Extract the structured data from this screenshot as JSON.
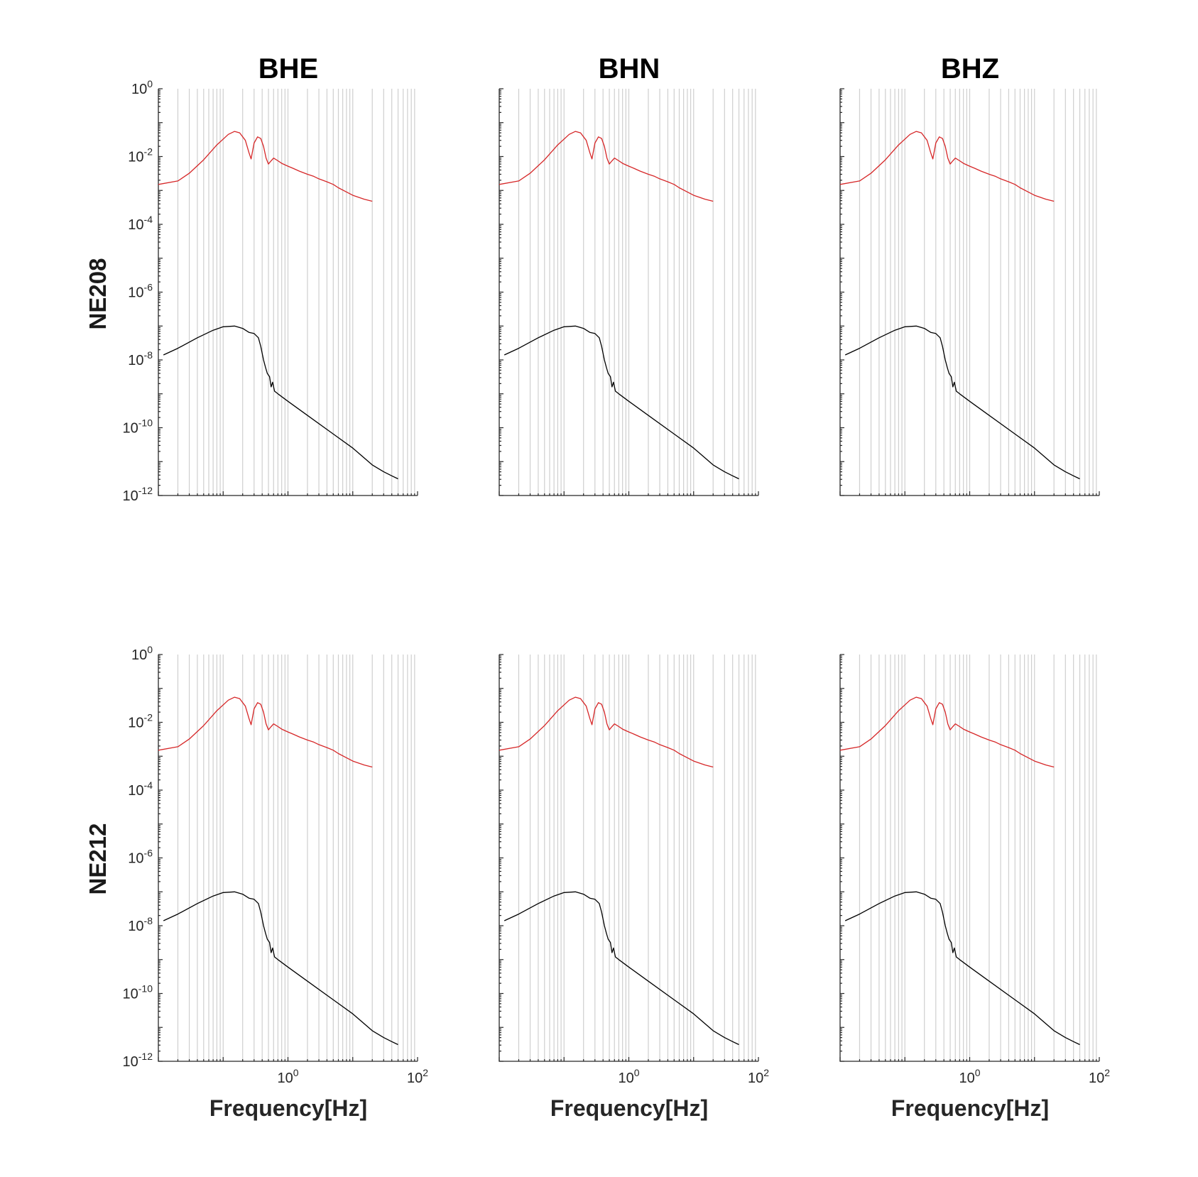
{
  "figure": {
    "columns": [
      "BHE",
      "BHN",
      "BHZ"
    ],
    "rows": [
      "NE208",
      "NE212"
    ],
    "xlabel": "Frequency[Hz]"
  },
  "chart_data": {
    "type": "line",
    "x_scale": "log",
    "y_scale": "log",
    "xlim": [
      0.01,
      100
    ],
    "ylim": [
      1e-12,
      1
    ],
    "grid": "vertical lines at minor and major x ticks",
    "x_ticks": [
      {
        "base": "10",
        "exp": "0",
        "value": 1
      },
      {
        "base": "10",
        "exp": "2",
        "value": 100
      }
    ],
    "y_ticks": [
      {
        "base": "10",
        "exp": "0",
        "value": 1
      },
      {
        "base": "10",
        "exp": "-2",
        "value": 0.01
      },
      {
        "base": "10",
        "exp": "-4",
        "value": 0.0001
      },
      {
        "base": "10",
        "exp": "-6",
        "value": 1e-06
      },
      {
        "base": "10",
        "exp": "-8",
        "value": 1e-08
      },
      {
        "base": "10",
        "exp": "-10",
        "value": 1e-10
      },
      {
        "base": "10",
        "exp": "-12",
        "value": 1e-12
      }
    ],
    "series": [
      {
        "color": "#d62728",
        "points": [
          [
            0.01,
            0.0015
          ],
          [
            0.02,
            0.0019
          ],
          [
            0.03,
            0.0032
          ],
          [
            0.05,
            0.008
          ],
          [
            0.08,
            0.022
          ],
          [
            0.12,
            0.045
          ],
          [
            0.15,
            0.055
          ],
          [
            0.18,
            0.05
          ],
          [
            0.22,
            0.03
          ],
          [
            0.25,
            0.013
          ],
          [
            0.27,
            0.0085
          ],
          [
            0.3,
            0.025
          ],
          [
            0.34,
            0.038
          ],
          [
            0.38,
            0.034
          ],
          [
            0.42,
            0.02
          ],
          [
            0.46,
            0.009
          ],
          [
            0.5,
            0.006
          ],
          [
            0.55,
            0.0075
          ],
          [
            0.6,
            0.009
          ],
          [
            0.7,
            0.0075
          ],
          [
            0.8,
            0.0063
          ],
          [
            1.0,
            0.0052
          ],
          [
            1.2,
            0.0045
          ],
          [
            1.5,
            0.0037
          ],
          [
            2.0,
            0.003
          ],
          [
            2.5,
            0.0026
          ],
          [
            3.0,
            0.0022
          ],
          [
            4.0,
            0.0018
          ],
          [
            5.0,
            0.0015
          ],
          [
            6.0,
            0.0012
          ],
          [
            8.0,
            0.0009
          ],
          [
            10.0,
            0.00072
          ],
          [
            15.0,
            0.00055
          ],
          [
            20.0,
            0.00048
          ]
        ]
      },
      {
        "color": "#000000",
        "points": [
          [
            0.012,
            1.4e-08
          ],
          [
            0.02,
            2.2e-08
          ],
          [
            0.04,
            4.5e-08
          ],
          [
            0.07,
            7.5e-08
          ],
          [
            0.1,
            9.5e-08
          ],
          [
            0.15,
            1e-07
          ],
          [
            0.2,
            8.5e-08
          ],
          [
            0.25,
            6.5e-08
          ],
          [
            0.3,
            6e-08
          ],
          [
            0.35,
            4.5e-08
          ],
          [
            0.38,
            2.5e-08
          ],
          [
            0.42,
            1e-08
          ],
          [
            0.45,
            6e-09
          ],
          [
            0.48,
            4e-09
          ],
          [
            0.52,
            3.2e-09
          ],
          [
            0.55,
            1.6e-09
          ],
          [
            0.58,
            2.2e-09
          ],
          [
            0.62,
            1.2e-09
          ],
          [
            0.7,
            1e-09
          ],
          [
            1.0,
            6e-10
          ],
          [
            2.0,
            2.3e-10
          ],
          [
            5.0,
            6.5e-11
          ],
          [
            10.0,
            2.5e-11
          ],
          [
            20.0,
            8e-12
          ],
          [
            30.0,
            5e-12
          ],
          [
            40.0,
            3.8e-12
          ],
          [
            50.0,
            3.1e-12
          ]
        ]
      }
    ]
  }
}
